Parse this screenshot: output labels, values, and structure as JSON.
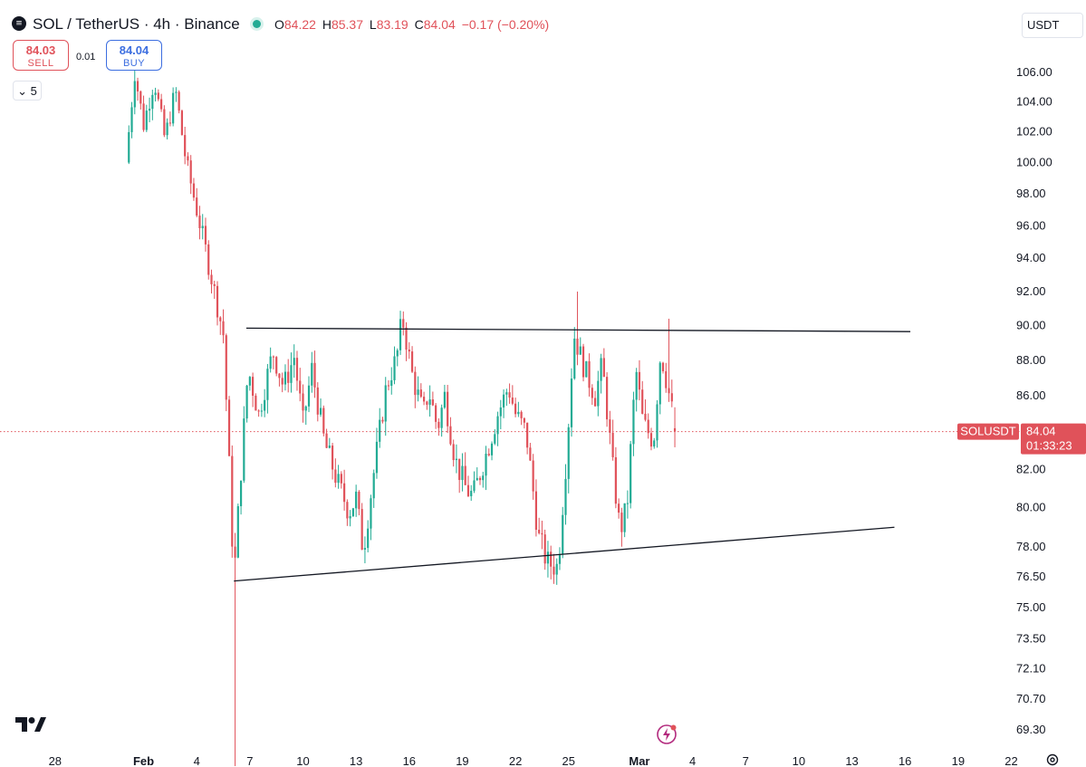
{
  "header": {
    "logo_glyph": "≡",
    "symbol_title": "SOL / TetherUS · 4h · Binance",
    "ohlc": {
      "o_label": "O",
      "o": "84.22",
      "h_label": "H",
      "h": "85.37",
      "l_label": "L",
      "l": "83.19",
      "c_label": "C",
      "c": "84.04",
      "change": "−0.17 (−0.20%)"
    },
    "market_status_color": "#22ab94"
  },
  "trade": {
    "sell_price": "84.03",
    "sell_label": "SELL",
    "spread": "0.01",
    "buy_price": "84.04",
    "buy_label": "BUY"
  },
  "indicators_toggle": {
    "glyph": "⌄",
    "count": "5"
  },
  "currency": "USDT",
  "price_tag": {
    "symbol": "SOLUSDT",
    "price": "84.04",
    "countdown": "01:33:23"
  },
  "colors": {
    "up": "#22ab94",
    "down": "#e0525a",
    "line": "#131722"
  },
  "chart_data": {
    "type": "candlestick",
    "interval": "4h",
    "y_scale": "log",
    "y_ticks": [
      "106.00",
      "104.00",
      "102.00",
      "100.00",
      "98.00",
      "96.00",
      "94.00",
      "92.00",
      "90.00",
      "88.00",
      "86.00",
      "82.00",
      "80.00",
      "78.00",
      "76.50",
      "75.00",
      "73.50",
      "72.10",
      "70.70",
      "69.30"
    ],
    "x_ticks": [
      {
        "label": "28",
        "day": -4
      },
      {
        "label": "Feb",
        "day": 1
      },
      {
        "label": "4",
        "day": 4
      },
      {
        "label": "7",
        "day": 7
      },
      {
        "label": "10",
        "day": 10
      },
      {
        "label": "13",
        "day": 13
      },
      {
        "label": "16",
        "day": 16
      },
      {
        "label": "19",
        "day": 19
      },
      {
        "label": "22",
        "day": 22
      },
      {
        "label": "25",
        "day": 25
      },
      {
        "label": "Mar",
        "day": 29
      },
      {
        "label": "4",
        "day": 32
      },
      {
        "label": "7",
        "day": 35
      },
      {
        "label": "10",
        "day": 38
      },
      {
        "label": "13",
        "day": 41
      },
      {
        "label": "16",
        "day": 44
      },
      {
        "label": "19",
        "day": 47
      },
      {
        "label": "22",
        "day": 50
      }
    ],
    "last_price": 84.04,
    "trendlines": [
      {
        "name": "resistance",
        "from": [
          6.8,
          89.85
        ],
        "to": [
          44.3,
          89.65
        ]
      },
      {
        "name": "support",
        "from": [
          6.1,
          76.3
        ],
        "to": [
          43.4,
          79.0
        ]
      }
    ],
    "swings": [
      [
        0.0,
        100.0
      ],
      [
        0.5,
        106.0
      ],
      [
        1.0,
        102.5
      ],
      [
        1.6,
        105.5
      ],
      [
        2.2,
        101.5
      ],
      [
        2.8,
        104.8
      ],
      [
        3.4,
        100.0
      ],
      [
        3.9,
        97.5
      ],
      [
        4.4,
        95.0
      ],
      [
        5.0,
        92.0
      ],
      [
        5.5,
        89.5
      ],
      [
        6.0,
        78.5
      ],
      [
        6.15,
        77.0
      ],
      [
        6.5,
        82.0
      ],
      [
        6.9,
        87.5
      ],
      [
        7.5,
        85.0
      ],
      [
        8.3,
        88.5
      ],
      [
        8.9,
        86.5
      ],
      [
        9.5,
        88.2
      ],
      [
        10.0,
        84.5
      ],
      [
        10.5,
        87.5
      ],
      [
        11.2,
        83.5
      ],
      [
        12.0,
        81.2
      ],
      [
        12.6,
        79.8
      ],
      [
        13.0,
        80.5
      ],
      [
        13.4,
        77.8
      ],
      [
        14.1,
        82.5
      ],
      [
        14.7,
        86.5
      ],
      [
        15.3,
        88.2
      ],
      [
        15.6,
        90.5
      ],
      [
        16.2,
        87.0
      ],
      [
        16.8,
        85.0
      ],
      [
        17.1,
        86.3
      ],
      [
        17.6,
        84.2
      ],
      [
        18.0,
        86.0
      ],
      [
        18.6,
        82.5
      ],
      [
        19.2,
        81.0
      ],
      [
        19.6,
        80.6
      ],
      [
        20.4,
        83.0
      ],
      [
        21.0,
        85.0
      ],
      [
        21.6,
        86.5
      ],
      [
        22.0,
        85.0
      ],
      [
        22.6,
        84.0
      ],
      [
        23.3,
        78.5
      ],
      [
        23.8,
        77.2
      ],
      [
        24.4,
        77.0
      ],
      [
        24.9,
        83.0
      ],
      [
        25.3,
        89.5
      ],
      [
        25.9,
        87.5
      ],
      [
        26.5,
        86.0
      ],
      [
        26.9,
        87.8
      ],
      [
        27.5,
        82.0
      ],
      [
        27.9,
        78.8
      ],
      [
        28.3,
        80.0
      ],
      [
        28.8,
        87.5
      ],
      [
        29.2,
        84.5
      ],
      [
        29.8,
        83.5
      ],
      [
        30.2,
        88.5
      ],
      [
        30.6,
        86.5
      ],
      [
        31.0,
        84.3
      ]
    ]
  }
}
